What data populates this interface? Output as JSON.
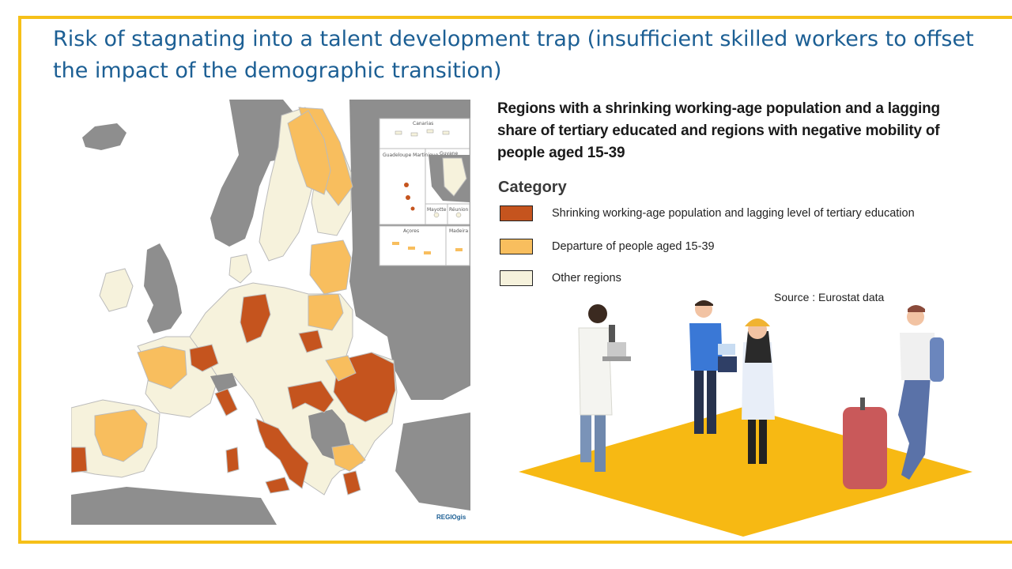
{
  "title": "Risk of stagnating into a talent development trap (insufficient skilled workers to offset the impact of the demographic transition)",
  "subtitle": "Regions with a shrinking working-age population and a lagging share of tertiary educated and regions with negative mobility of people aged 15-39",
  "legend": {
    "title": "Category",
    "items": [
      {
        "label": "Shrinking working-age population and lagging level of tertiary education",
        "color": "#c5541e"
      },
      {
        "label": "Departure of people aged 15-39",
        "color": "#f8be5e"
      },
      {
        "label": "Other regions",
        "color": "#f6f2dc"
      }
    ]
  },
  "source": "Source : Eurostat data",
  "map": {
    "logo_text": "REGIOgis",
    "insets": [
      "Canarias",
      "Guadeloupe Martinique",
      "Guyane",
      "Mayotte",
      "Réunion",
      "Açores",
      "Madeira"
    ],
    "colors": {
      "sea": "#ffffff",
      "non_eu": "#8e8e8e",
      "border": "#bbbbbb"
    }
  },
  "colors": {
    "frame": "#f6c018",
    "title": "#1c5f94",
    "platform": "#f7b913"
  }
}
